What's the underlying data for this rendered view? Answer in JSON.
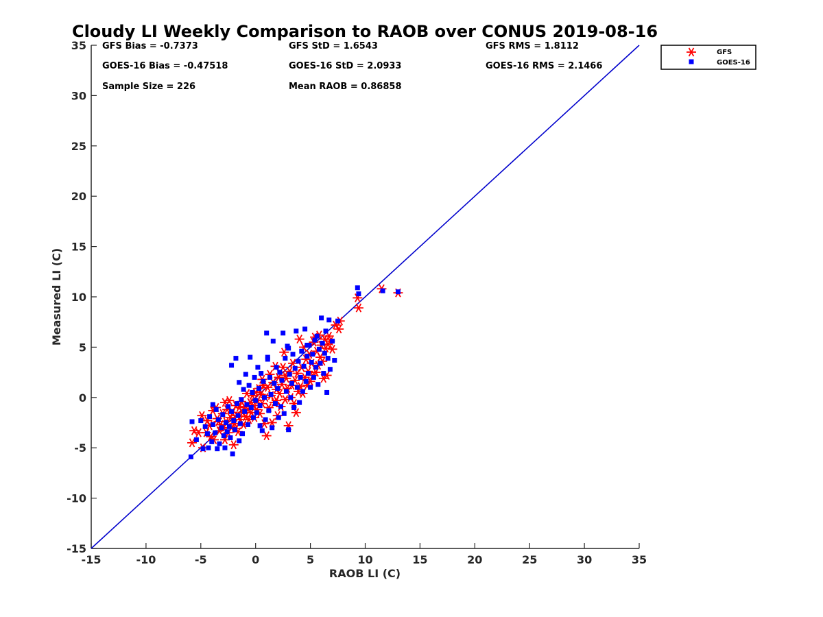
{
  "chart_data": {
    "type": "scatter",
    "title": "Cloudy LI Weekly Comparison to RAOB over CONUS 2019-08-16",
    "xlabel": "RAOB LI (C)",
    "ylabel": "Measured LI (C)",
    "xlim": [
      -15,
      35
    ],
    "ylim": [
      -15,
      35
    ],
    "xticks": [
      -15,
      -10,
      -5,
      0,
      5,
      10,
      15,
      20,
      25,
      30,
      35
    ],
    "yticks": [
      -15,
      -10,
      -5,
      0,
      5,
      10,
      15,
      20,
      25,
      30,
      35
    ],
    "grid": false,
    "legend_position": "top-right (outside plot)",
    "reference_line": {
      "x": [
        -15,
        35
      ],
      "y": [
        -15,
        35
      ],
      "color": "#0000cc"
    },
    "stats": [
      [
        "GFS Bias = -0.7373",
        "GFS StD = 1.6543",
        "GFS RMS = 1.8112"
      ],
      [
        "GOES-16 Bias = -0.47518",
        "GOES-16 StD = 2.0933",
        "GOES-16 RMS = 2.1466"
      ],
      [
        "Sample Size = 226",
        "Mean RAOB = 0.86858",
        ""
      ]
    ],
    "series": [
      {
        "name": "GFS",
        "marker": "asterisk",
        "color": "#ff0000",
        "points": [
          [
            -5.8,
            -4.5
          ],
          [
            -5.6,
            -3.3
          ],
          [
            -5.2,
            -3.5
          ],
          [
            -4.9,
            -1.8
          ],
          [
            -4.8,
            -5.0
          ],
          [
            -4.5,
            -3.5
          ],
          [
            -4.4,
            -2.3
          ],
          [
            -4.2,
            -2.8
          ],
          [
            -4.1,
            -3.9
          ],
          [
            -3.9,
            -1.3
          ],
          [
            -3.8,
            -4.2
          ],
          [
            -3.6,
            -1.0
          ],
          [
            -3.5,
            -2.1
          ],
          [
            -3.3,
            -3.3
          ],
          [
            -3.2,
            -2.7
          ],
          [
            -3.0,
            -1.6
          ],
          [
            -2.9,
            -3.0
          ],
          [
            -2.8,
            -4.2
          ],
          [
            -2.7,
            -2.4
          ],
          [
            -2.6,
            -1.2
          ],
          [
            -2.5,
            -3.5
          ],
          [
            -2.4,
            -0.3
          ],
          [
            -2.3,
            -2.0
          ],
          [
            -2.2,
            -3.0
          ],
          [
            -2.1,
            -1.5
          ],
          [
            -2.0,
            -4.7
          ],
          [
            -1.9,
            -2.6
          ],
          [
            -1.8,
            -0.8
          ],
          [
            -1.7,
            -1.8
          ],
          [
            -1.6,
            -3.4
          ],
          [
            -1.5,
            -1.0
          ],
          [
            -1.4,
            -2.2
          ],
          [
            -1.3,
            -0.4
          ],
          [
            -1.2,
            -1.5
          ],
          [
            -1.1,
            -2.7
          ],
          [
            -1.0,
            -0.9
          ],
          [
            -0.9,
            -1.9
          ],
          [
            -0.8,
            0.4
          ],
          [
            -0.7,
            -1.2
          ],
          [
            -0.6,
            -2.2
          ],
          [
            -0.5,
            -0.5
          ],
          [
            -0.4,
            -1.5
          ],
          [
            -0.3,
            0.2
          ],
          [
            -0.2,
            -0.8
          ],
          [
            -0.1,
            -2.0
          ],
          [
            0.0,
            0.5
          ],
          [
            0.1,
            -1.2
          ],
          [
            0.2,
            -0.3
          ],
          [
            0.3,
            0.9
          ],
          [
            0.4,
            -1.6
          ],
          [
            0.5,
            0.3
          ],
          [
            0.6,
            -0.6
          ],
          [
            0.7,
            1.2
          ],
          [
            0.8,
            -2.6
          ],
          [
            0.9,
            0.0
          ],
          [
            1.0,
            -3.8
          ],
          [
            1.1,
            1.0
          ],
          [
            1.2,
            -1.0
          ],
          [
            1.3,
            2.3
          ],
          [
            1.4,
            0.2
          ],
          [
            1.5,
            -2.5
          ],
          [
            1.6,
            1.5
          ],
          [
            1.7,
            -0.5
          ],
          [
            1.8,
            3.1
          ],
          [
            1.9,
            0.8
          ],
          [
            2.0,
            -1.8
          ],
          [
            2.1,
            2.0
          ],
          [
            2.2,
            0.4
          ],
          [
            2.3,
            -0.9
          ],
          [
            2.4,
            1.3
          ],
          [
            2.5,
            3.0
          ],
          [
            2.6,
            4.5
          ],
          [
            2.7,
            -0.2
          ],
          [
            2.8,
            1.9
          ],
          [
            2.9,
            0.9
          ],
          [
            3.0,
            -2.8
          ],
          [
            3.1,
            2.6
          ],
          [
            3.2,
            0.0
          ],
          [
            3.3,
            1.2
          ],
          [
            3.4,
            3.4
          ],
          [
            3.5,
            -0.6
          ],
          [
            3.6,
            1.7
          ],
          [
            3.7,
            -1.5
          ],
          [
            3.8,
            2.4
          ],
          [
            3.9,
            0.6
          ],
          [
            4.0,
            5.8
          ],
          [
            4.1,
            1.1
          ],
          [
            4.2,
            3.0
          ],
          [
            4.3,
            0.4
          ],
          [
            4.4,
            5.0
          ],
          [
            4.5,
            2.0
          ],
          [
            4.6,
            3.8
          ],
          [
            4.7,
            1.2
          ],
          [
            4.8,
            2.6
          ],
          [
            4.9,
            4.3
          ],
          [
            5.0,
            1.6
          ],
          [
            5.1,
            3.4
          ],
          [
            5.2,
            2.2
          ],
          [
            5.3,
            5.5
          ],
          [
            5.4,
            6.0
          ],
          [
            5.5,
            2.5
          ],
          [
            5.6,
            4.6
          ],
          [
            5.7,
            3.2
          ],
          [
            5.8,
            6.2
          ],
          [
            5.9,
            4.0
          ],
          [
            6.0,
            5.2
          ],
          [
            6.1,
            3.6
          ],
          [
            6.2,
            1.9
          ],
          [
            6.3,
            5.8
          ],
          [
            6.4,
            4.9
          ],
          [
            6.5,
            2.2
          ],
          [
            6.6,
            5.3
          ],
          [
            6.7,
            6.1
          ],
          [
            6.8,
            5.6
          ],
          [
            7.0,
            4.8
          ],
          [
            7.3,
            7.2
          ],
          [
            7.6,
            6.8
          ],
          [
            7.7,
            7.6
          ],
          [
            9.3,
            9.9
          ],
          [
            9.4,
            8.9
          ],
          [
            11.5,
            10.8
          ],
          [
            13.0,
            10.4
          ],
          [
            -2.8,
            -0.5
          ],
          [
            -3.4,
            -2.4
          ],
          [
            0.6,
            1.8
          ],
          [
            2.7,
            2.2
          ],
          [
            -1.8,
            -3.1
          ],
          [
            1.9,
            -0.3
          ]
        ]
      },
      {
        "name": "GOES-16",
        "marker": "square",
        "color": "#0000ff",
        "points": [
          [
            -5.9,
            -5.9
          ],
          [
            -5.8,
            -2.4
          ],
          [
            -5.4,
            -4.2
          ],
          [
            -5.0,
            -2.3
          ],
          [
            -4.8,
            -5.1
          ],
          [
            -4.6,
            -2.9
          ],
          [
            -4.4,
            -3.6
          ],
          [
            -4.3,
            -5.0
          ],
          [
            -4.2,
            -1.9
          ],
          [
            -4.0,
            -4.4
          ],
          [
            -3.9,
            -2.7
          ],
          [
            -3.7,
            -3.5
          ],
          [
            -3.6,
            -1.2
          ],
          [
            -3.5,
            -5.1
          ],
          [
            -3.4,
            -2.2
          ],
          [
            -3.3,
            -4.6
          ],
          [
            -3.1,
            -3.0
          ],
          [
            -3.0,
            -1.7
          ],
          [
            -2.9,
            -3.8
          ],
          [
            -2.8,
            -5.0
          ],
          [
            -2.7,
            -2.5
          ],
          [
            -2.6,
            -3.4
          ],
          [
            -2.5,
            -0.9
          ],
          [
            -2.4,
            -2.9
          ],
          [
            -2.3,
            -4.0
          ],
          [
            -2.2,
            -1.4
          ],
          [
            -2.1,
            -5.6
          ],
          [
            -2.0,
            -2.3
          ],
          [
            -1.9,
            -3.2
          ],
          [
            -1.8,
            3.9
          ],
          [
            -1.7,
            -0.6
          ],
          [
            -1.6,
            -1.8
          ],
          [
            -1.5,
            1.5
          ],
          [
            -1.4,
            -2.6
          ],
          [
            -1.3,
            -0.2
          ],
          [
            -1.2,
            -3.6
          ],
          [
            -1.1,
            0.8
          ],
          [
            -1.0,
            -1.4
          ],
          [
            -0.9,
            2.3
          ],
          [
            -0.8,
            -0.7
          ],
          [
            -0.7,
            -2.7
          ],
          [
            -0.6,
            1.2
          ],
          [
            -0.5,
            4.0
          ],
          [
            -0.4,
            -1.0
          ],
          [
            -0.3,
            0.5
          ],
          [
            -0.2,
            -2.0
          ],
          [
            -0.1,
            2.0
          ],
          [
            0.0,
            -0.3
          ],
          [
            0.1,
            -1.5
          ],
          [
            0.2,
            3.0
          ],
          [
            0.3,
            0.9
          ],
          [
            0.4,
            -0.8
          ],
          [
            0.5,
            2.4
          ],
          [
            0.6,
            -3.3
          ],
          [
            0.7,
            1.6
          ],
          [
            0.8,
            0.0
          ],
          [
            0.9,
            -2.2
          ],
          [
            1.0,
            6.4
          ],
          [
            1.1,
            3.8
          ],
          [
            1.2,
            -1.3
          ],
          [
            1.3,
            2.0
          ],
          [
            1.4,
            0.3
          ],
          [
            1.5,
            -3.0
          ],
          [
            1.6,
            5.6
          ],
          [
            1.7,
            1.4
          ],
          [
            1.8,
            -0.6
          ],
          [
            1.9,
            3.0
          ],
          [
            2.0,
            0.9
          ],
          [
            2.1,
            -2.0
          ],
          [
            2.2,
            2.5
          ],
          [
            2.3,
            -0.9
          ],
          [
            2.4,
            1.7
          ],
          [
            2.5,
            6.4
          ],
          [
            2.6,
            -1.6
          ],
          [
            2.7,
            3.9
          ],
          [
            2.8,
            0.6
          ],
          [
            2.9,
            5.1
          ],
          [
            3.0,
            -3.2
          ],
          [
            3.1,
            2.3
          ],
          [
            3.2,
            0.0
          ],
          [
            3.3,
            1.4
          ],
          [
            3.4,
            4.3
          ],
          [
            3.5,
            -1.0
          ],
          [
            3.6,
            2.9
          ],
          [
            3.7,
            6.6
          ],
          [
            3.8,
            1.0
          ],
          [
            3.9,
            3.6
          ],
          [
            4.0,
            -0.5
          ],
          [
            4.1,
            2.0
          ],
          [
            4.2,
            4.6
          ],
          [
            4.3,
            0.6
          ],
          [
            4.4,
            3.1
          ],
          [
            4.5,
            6.8
          ],
          [
            4.6,
            1.6
          ],
          [
            4.7,
            4.1
          ],
          [
            4.8,
            2.4
          ],
          [
            4.9,
            5.2
          ],
          [
            5.0,
            1.0
          ],
          [
            5.1,
            3.5
          ],
          [
            5.2,
            4.3
          ],
          [
            5.3,
            2.0
          ],
          [
            5.4,
            5.7
          ],
          [
            5.5,
            3.0
          ],
          [
            5.6,
            6.1
          ],
          [
            5.7,
            1.3
          ],
          [
            5.8,
            4.8
          ],
          [
            5.9,
            3.4
          ],
          [
            6.0,
            7.9
          ],
          [
            6.1,
            5.4
          ],
          [
            6.2,
            2.4
          ],
          [
            6.3,
            4.4
          ],
          [
            6.4,
            6.6
          ],
          [
            6.5,
            0.5
          ],
          [
            6.6,
            3.9
          ],
          [
            6.7,
            7.7
          ],
          [
            6.8,
            2.8
          ],
          [
            7.0,
            5.6
          ],
          [
            7.2,
            3.7
          ],
          [
            7.5,
            7.6
          ],
          [
            9.3,
            10.9
          ],
          [
            9.4,
            10.3
          ],
          [
            11.6,
            10.6
          ],
          [
            13.0,
            10.5
          ],
          [
            -3.9,
            -0.7
          ],
          [
            -2.2,
            3.2
          ],
          [
            1.1,
            4.0
          ],
          [
            3.0,
            4.9
          ],
          [
            -1.5,
            -4.3
          ],
          [
            0.4,
            -2.8
          ],
          [
            4.7,
            5.2
          ]
        ]
      }
    ]
  }
}
